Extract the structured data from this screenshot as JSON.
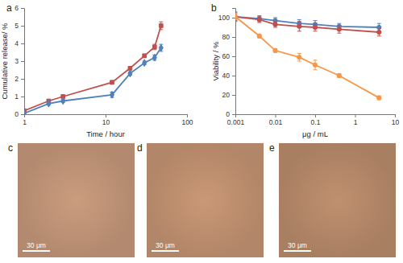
{
  "chart_data": [
    {
      "type": "line",
      "panel_label": "a",
      "x_label": "Time / hour",
      "y_label": "Cumulative release/ %",
      "log": "x",
      "grid": false,
      "x": [
        1,
        2,
        3,
        12,
        20,
        30,
        40,
        48
      ],
      "xlim": [
        1,
        100
      ],
      "xticks": [
        1,
        10,
        100
      ],
      "ylim": [
        0,
        6
      ],
      "yticks": [
        0,
        1,
        2,
        3,
        4,
        5,
        6
      ],
      "series": [
        {
          "color": "#c0504d",
          "marker": "square",
          "values": [
            0.2,
            0.75,
            1.0,
            1.8,
            2.6,
            3.3,
            3.8,
            5.0
          ],
          "error": [
            0.05,
            0.08,
            0.08,
            0.1,
            0.1,
            0.1,
            0.15,
            0.22
          ]
        },
        {
          "color": "#4f81bd",
          "marker": "diamond",
          "values": [
            0.05,
            0.6,
            0.75,
            1.1,
            2.3,
            2.9,
            3.2,
            3.75
          ],
          "error": [
            0.05,
            0.08,
            0.08,
            0.15,
            0.1,
            0.1,
            0.15,
            0.2
          ]
        }
      ]
    },
    {
      "type": "line",
      "panel_label": "b",
      "x_label": "μg / mL",
      "y_label": "Viability / %",
      "log": "x",
      "grid": false,
      "x": [
        0.001,
        0.004,
        0.01,
        0.04,
        0.1,
        0.4,
        4
      ],
      "xlim": [
        0.001,
        10
      ],
      "xticks": [
        0.001,
        0.01,
        0.1,
        1,
        10
      ],
      "ylim": [
        0,
        110
      ],
      "yticks": [
        0,
        20,
        40,
        60,
        80,
        100
      ],
      "series": [
        {
          "color": "#4f81bd",
          "marker": "circle",
          "values": [
            101,
            99,
            97,
            94,
            93,
            91,
            90
          ],
          "error": [
            5,
            3,
            3,
            4,
            4,
            3,
            4
          ]
        },
        {
          "color": "#c0504d",
          "marker": "circle",
          "values": [
            101,
            98,
            93,
            91,
            90,
            88,
            85
          ],
          "error": [
            4,
            3,
            3,
            5,
            4,
            4,
            4
          ]
        },
        {
          "color": "#f79646",
          "marker": "circle",
          "values": [
            101,
            81,
            66,
            59,
            51,
            40,
            17
          ],
          "error": [
            3,
            2,
            2,
            4,
            5,
            2,
            2
          ]
        }
      ]
    }
  ],
  "images": [
    {
      "panel_label": "c",
      "scale_bar": "30 μm"
    },
    {
      "panel_label": "d",
      "scale_bar": "30 μm"
    },
    {
      "panel_label": "e",
      "scale_bar": "30 μm"
    }
  ]
}
